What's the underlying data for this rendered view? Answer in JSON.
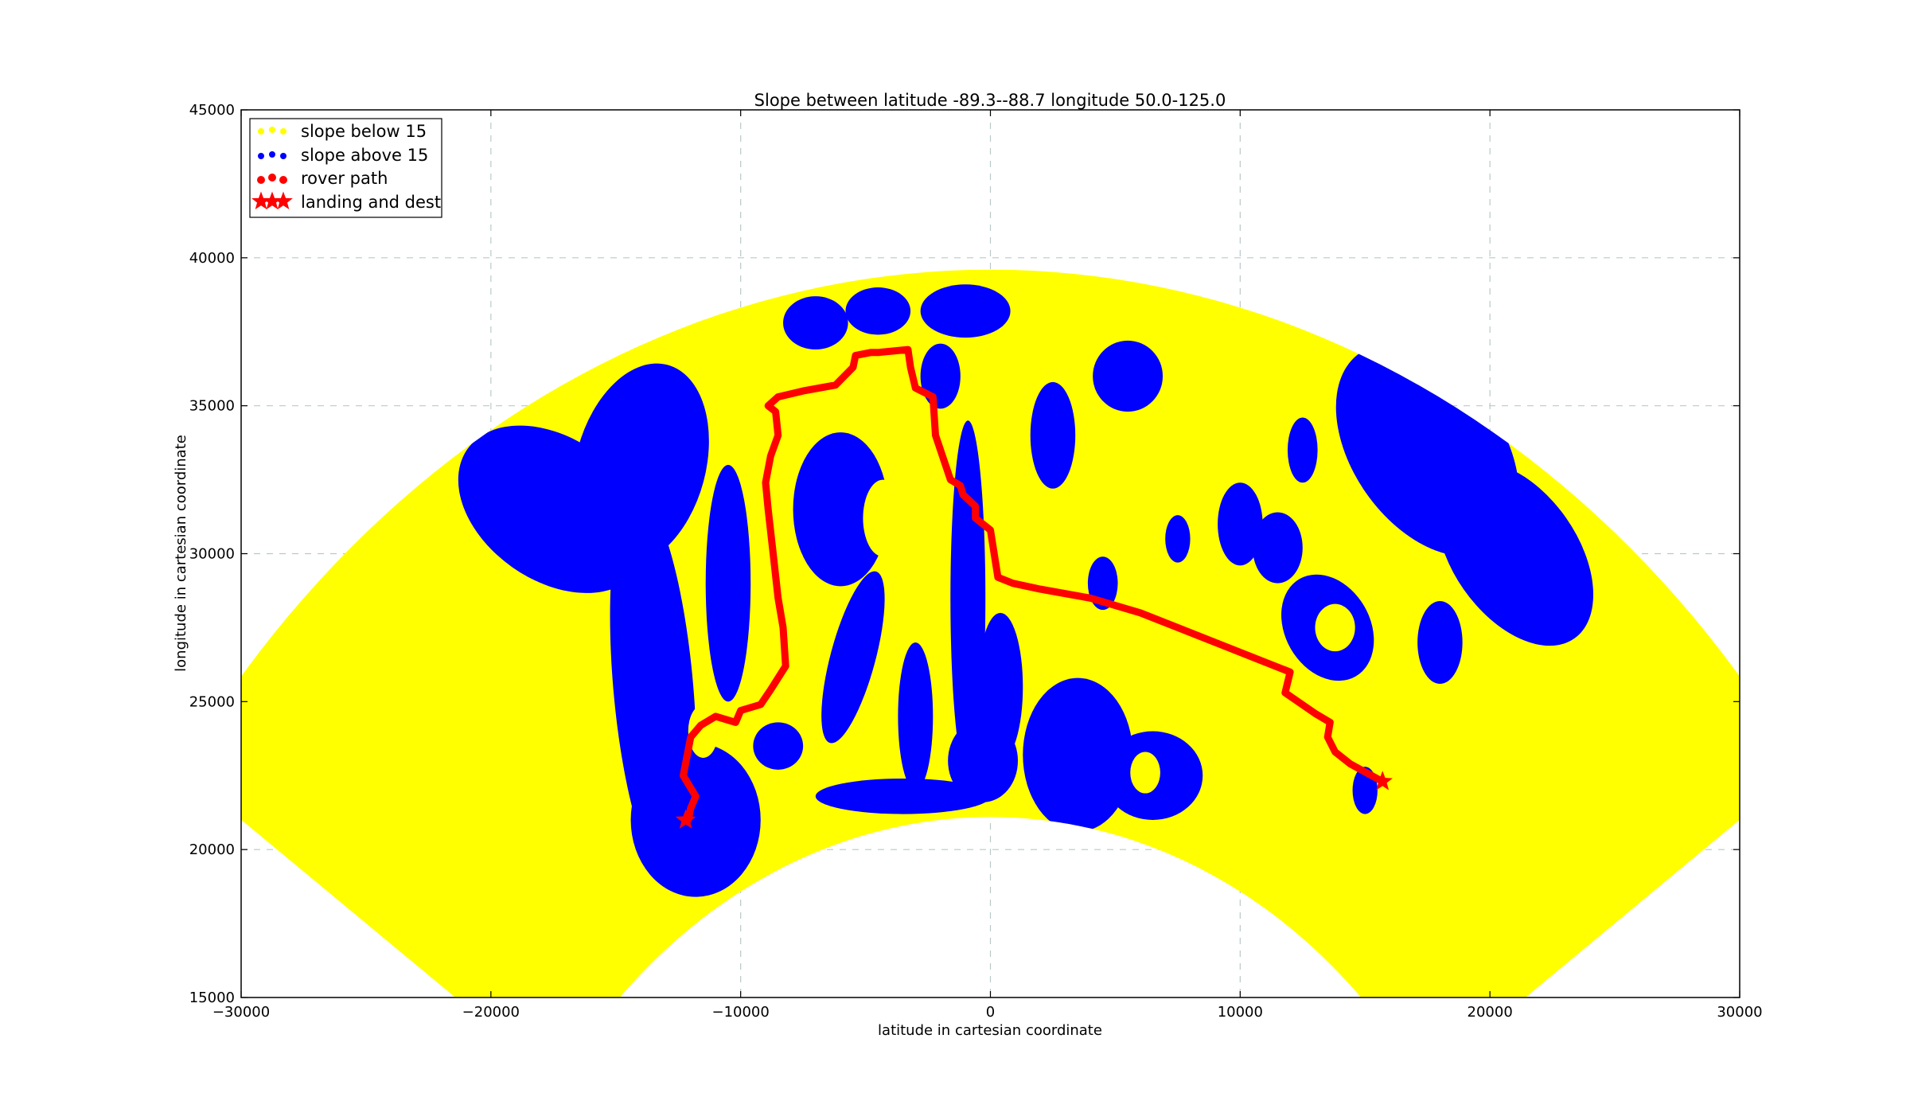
{
  "chart_data": {
    "type": "scatter",
    "title": "Slope between latitude -89.3--88.7 longitude 50.0-125.0",
    "xlabel": "latitude in cartesian coordinate",
    "ylabel": "longitude in cartesian coordinate",
    "xlim": [
      -30000,
      30000
    ],
    "ylim": [
      15000,
      45000
    ],
    "xticks": [
      -30000,
      -20000,
      -10000,
      0,
      10000,
      20000,
      30000
    ],
    "xtick_labels": [
      "−30000",
      "−20000",
      "−10000",
      "0",
      "10000",
      "20000",
      "30000"
    ],
    "yticks": [
      15000,
      20000,
      25000,
      30000,
      35000,
      40000,
      45000
    ],
    "ytick_labels": [
      "15000",
      "20000",
      "25000",
      "30000",
      "35000",
      "40000",
      "45000"
    ],
    "grid": true,
    "legend_position": "top-left",
    "region": {
      "center": [
        0,
        0
      ],
      "inner_radius": 21100,
      "outer_radius": 39600,
      "angle_start_deg": 35,
      "angle_end_deg": 145
    },
    "series": [
      {
        "name": "slope below 15",
        "color": "#ffff00",
        "marker": "dot",
        "description_shape": "annular sector"
      },
      {
        "name": "slope above 15",
        "color": "#0000ff",
        "marker": "dot",
        "blobs": [
          {
            "cx": -17500,
            "cy": 31500,
            "rx": 4200,
            "ry": 2400,
            "rot": -35
          },
          {
            "cx": -14000,
            "cy": 33000,
            "rx": 2600,
            "ry": 3500,
            "rot": -15
          },
          {
            "cx": -13500,
            "cy": 25500,
            "rx": 1600,
            "ry": 6500,
            "rot": 5
          },
          {
            "cx": -11800,
            "cy": 21000,
            "rx": 2600,
            "ry": 2600,
            "rot": 0
          },
          {
            "cx": -10500,
            "cy": 29000,
            "rx": 900,
            "ry": 4000,
            "rot": 0
          },
          {
            "cx": -6000,
            "cy": 31500,
            "rx": 1900,
            "ry": 2600,
            "rot": 0
          },
          {
            "cx": -5500,
            "cy": 26500,
            "rx": 900,
            "ry": 3000,
            "rot": -15
          },
          {
            "cx": -3000,
            "cy": 24500,
            "rx": 700,
            "ry": 2500,
            "rot": 0
          },
          {
            "cx": -7000,
            "cy": 37800,
            "rx": 1300,
            "ry": 900,
            "rot": 0
          },
          {
            "cx": -4500,
            "cy": 38200,
            "rx": 1300,
            "ry": 800,
            "rot": 0
          },
          {
            "cx": -1000,
            "cy": 38200,
            "rx": 1800,
            "ry": 900,
            "rot": 0
          },
          {
            "cx": -2000,
            "cy": 36000,
            "rx": 800,
            "ry": 1100,
            "rot": 0
          },
          {
            "cx": -900,
            "cy": 28500,
            "rx": 700,
            "ry": 6000,
            "rot": 0
          },
          {
            "cx": 400,
            "cy": 25500,
            "rx": 900,
            "ry": 2500,
            "rot": 0
          },
          {
            "cx": -300,
            "cy": 23000,
            "rx": 1400,
            "ry": 1400,
            "rot": 0
          },
          {
            "cx": 3500,
            "cy": 23200,
            "rx": 2200,
            "ry": 2600,
            "rot": 0
          },
          {
            "cx": 6500,
            "cy": 22500,
            "rx": 2000,
            "ry": 1500,
            "rot": 0
          },
          {
            "cx": -3500,
            "cy": 21800,
            "rx": 3500,
            "ry": 600,
            "rot": 0
          },
          {
            "cx": 5500,
            "cy": 36000,
            "rx": 1400,
            "ry": 1200,
            "rot": 0
          },
          {
            "cx": 2500,
            "cy": 34000,
            "rx": 900,
            "ry": 1800,
            "rot": 0
          },
          {
            "cx": 10000,
            "cy": 31000,
            "rx": 900,
            "ry": 1400,
            "rot": 0
          },
          {
            "cx": 11500,
            "cy": 30200,
            "rx": 1000,
            "ry": 1200,
            "rot": 0
          },
          {
            "cx": 13500,
            "cy": 27500,
            "rx": 1700,
            "ry": 1900,
            "rot": 30
          },
          {
            "cx": 12500,
            "cy": 33500,
            "rx": 600,
            "ry": 1100,
            "rot": 0
          },
          {
            "cx": 17500,
            "cy": 33500,
            "rx": 3000,
            "ry": 4000,
            "rot": 35
          },
          {
            "cx": 21000,
            "cy": 30000,
            "rx": 2500,
            "ry": 3500,
            "rot": 35
          },
          {
            "cx": 18000,
            "cy": 27000,
            "rx": 900,
            "ry": 1400,
            "rot": 0
          },
          {
            "cx": 4500,
            "cy": 29000,
            "rx": 600,
            "ry": 900,
            "rot": 0
          },
          {
            "cx": 7500,
            "cy": 30500,
            "rx": 500,
            "ry": 800,
            "rot": 0
          },
          {
            "cx": -8500,
            "cy": 23500,
            "rx": 1000,
            "ry": 800,
            "rot": 0
          },
          {
            "cx": 15000,
            "cy": 22000,
            "rx": 500,
            "ry": 800,
            "rot": 0
          }
        ],
        "holes": [
          {
            "cx": -4300,
            "cy": 31200,
            "rx": 800,
            "ry": 1300
          },
          {
            "cx": 13800,
            "cy": 27500,
            "rx": 800,
            "ry": 800
          },
          {
            "cx": 6200,
            "cy": 22600,
            "rx": 600,
            "ry": 700
          },
          {
            "cx": -11500,
            "cy": 24000,
            "rx": 600,
            "ry": 900
          }
        ]
      },
      {
        "name": "rover path",
        "color": "#ff0000",
        "marker": "dot",
        "x": [
          -12100,
          -12000,
          -11800,
          -12300,
          -12000,
          -11600,
          -11000,
          -10200,
          -10000,
          -9200,
          -8800,
          -8200,
          -8300,
          -8500,
          -8700,
          -8900,
          -9000,
          -8800,
          -8500,
          -8600,
          -8900,
          -8500,
          -7500,
          -6200,
          -5500,
          -5400,
          -4800,
          -4500,
          -3300,
          -3200,
          -3000,
          -2300,
          -2200,
          -1600,
          -1200,
          -1100,
          -600,
          -600,
          -300,
          0,
          300,
          900,
          2000,
          4000,
          6000,
          9000,
          12000,
          11800,
          13000,
          13600,
          13500,
          13800,
          14400,
          15700
        ],
        "y": [
          21000,
          21400,
          21800,
          22500,
          23800,
          24200,
          24500,
          24300,
          24700,
          24900,
          25400,
          26200,
          27500,
          28500,
          30000,
          31500,
          32400,
          33300,
          34000,
          34800,
          35000,
          35300,
          35500,
          35700,
          36300,
          36700,
          36800,
          36800,
          36900,
          36300,
          35600,
          35300,
          34000,
          32500,
          32300,
          32000,
          31600,
          31200,
          31000,
          30800,
          29200,
          29000,
          28800,
          28500,
          28000,
          27000,
          26000,
          25300,
          24600,
          24300,
          23800,
          23300,
          22900,
          22300
        ]
      },
      {
        "name": "landing and dest",
        "color": "#ff0000",
        "marker": "star",
        "x": [
          -12200,
          15700
        ],
        "y": [
          21000,
          22300
        ]
      }
    ]
  }
}
